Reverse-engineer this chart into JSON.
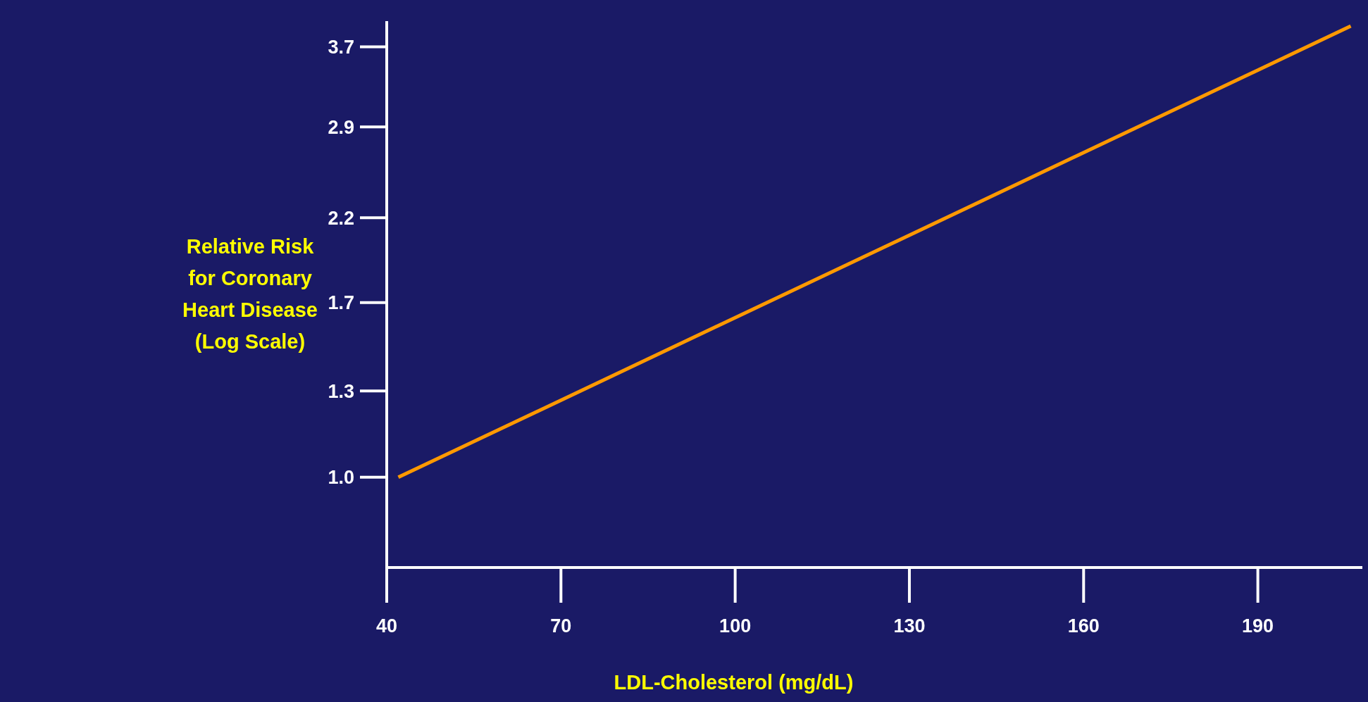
{
  "chart_data": {
    "type": "line",
    "xlabel": "LDL-Cholesterol (mg/dL)",
    "ylabel": "Relative Risk for Coronary Heart Disease (Log Scale)",
    "log": "y",
    "grid": false,
    "marker": "none",
    "line_style": "solid",
    "xlim": [
      40,
      208
    ],
    "xticks": [
      40,
      70,
      100,
      130,
      160,
      190
    ],
    "ylim": [
      0.76,
      4.0
    ],
    "yticks": [
      {
        "value": 1.0,
        "label": "1.0"
      },
      {
        "value": 1.3,
        "label": "1.3"
      },
      {
        "value": 1.7,
        "label": "1.7"
      },
      {
        "value": 2.2,
        "label": "2.2"
      },
      {
        "value": 2.9,
        "label": "2.9"
      },
      {
        "value": 3.7,
        "label": "3.7"
      }
    ],
    "series": [
      {
        "color": "#ff9900",
        "x": [
          42,
          206
        ],
        "values": [
          1.0,
          3.94
        ]
      }
    ]
  }
}
